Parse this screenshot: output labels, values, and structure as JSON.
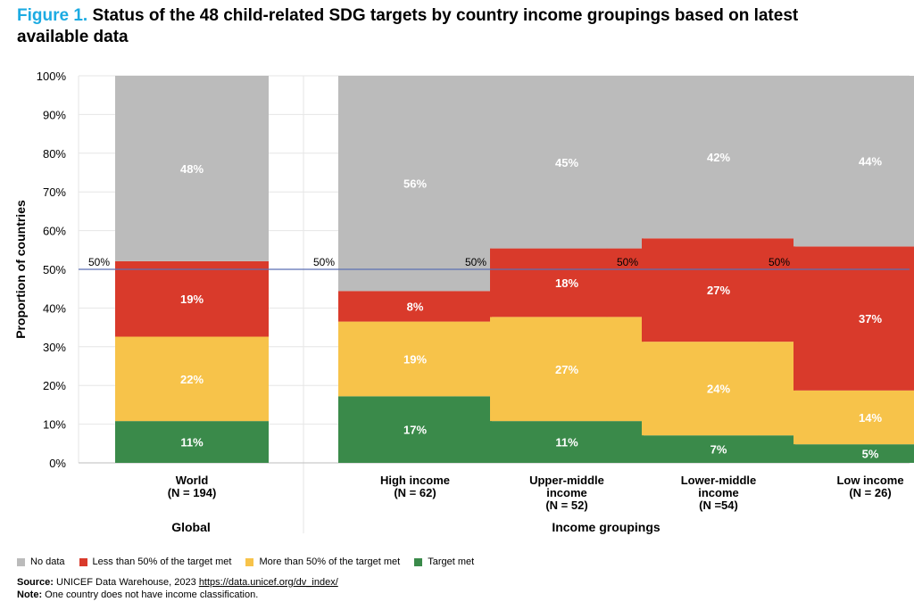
{
  "figure": {
    "label": "Figure 1.",
    "title": "Status of the 48 child-related SDG targets by country income groupings based on latest available data"
  },
  "colors": {
    "no_data": "#BBBBBB",
    "less_than_50": "#D93A2B",
    "more_than_50": "#F7C34A",
    "target_met": "#3A8A4A",
    "reference_line": "#5B6FB4",
    "title_accent": "#1CABE2"
  },
  "chart_data": {
    "type": "bar",
    "stacked": true,
    "ylabel": "Proportion of countries",
    "ylim": [
      0,
      100
    ],
    "yticks": [
      "0%",
      "10%",
      "20%",
      "30%",
      "40%",
      "50%",
      "60%",
      "70%",
      "80%",
      "90%",
      "100%"
    ],
    "reference_line": {
      "value": 50,
      "label": "50%"
    },
    "categories": [
      [
        "World",
        "(N = 194)"
      ],
      [
        "High income",
        "(N = 62)"
      ],
      [
        "Upper-middle",
        "income",
        "(N = 52)"
      ],
      [
        "Lower-middle",
        "income",
        "(N  =54)"
      ],
      [
        "Low income",
        "(N = 26)"
      ]
    ],
    "groups": [
      {
        "label": "Global",
        "categories": [
          0
        ]
      },
      {
        "label": "Income groupings",
        "categories": [
          1,
          2,
          3,
          4
        ]
      }
    ],
    "series": [
      {
        "name": "Target met",
        "color_key": "target_met",
        "values": [
          11,
          17,
          11,
          7,
          5
        ]
      },
      {
        "name": "More than 50% of the target met",
        "color_key": "more_than_50",
        "values": [
          22,
          19,
          27,
          24,
          14
        ]
      },
      {
        "name": "Less than 50% of the target met",
        "color_key": "less_than_50",
        "values": [
          19,
          8,
          18,
          27,
          37
        ]
      },
      {
        "name": "No data",
        "color_key": "no_data",
        "values": [
          48,
          56,
          45,
          42,
          44
        ]
      }
    ],
    "segment_bounds": [
      [
        [
          0,
          10.8
        ],
        [
          10.8,
          32.6
        ],
        [
          32.6,
          52.1
        ],
        [
          52.1,
          100
        ]
      ],
      [
        [
          0,
          17.2
        ],
        [
          17.2,
          36.5
        ],
        [
          36.5,
          44.4
        ],
        [
          44.4,
          100
        ]
      ],
      [
        [
          0,
          10.8
        ],
        [
          10.8,
          37.7
        ],
        [
          37.7,
          55.4
        ],
        [
          55.4,
          100
        ]
      ],
      [
        [
          0,
          7.1
        ],
        [
          7.1,
          31.3
        ],
        [
          31.3,
          58.0
        ],
        [
          58.0,
          100
        ]
      ],
      [
        [
          0,
          4.8
        ],
        [
          4.8,
          18.7
        ],
        [
          18.7,
          55.9
        ],
        [
          55.9,
          100
        ]
      ]
    ],
    "data_labels": [
      [
        "11%",
        "22%",
        "19%",
        "48%"
      ],
      [
        "17%",
        "19%",
        "8%",
        "56%"
      ],
      [
        "11%",
        "27%",
        "18%",
        "45%"
      ],
      [
        "7%",
        "24%",
        "27%",
        "42%"
      ],
      [
        "5%",
        "14%",
        "37%",
        "44%"
      ]
    ],
    "legend_order": [
      "No data",
      "Less than 50% of the target met",
      "More than 50% of the target met",
      "Target met"
    ]
  },
  "legend": {
    "items": [
      {
        "label": "No data",
        "color_key": "no_data"
      },
      {
        "label": "Less than 50% of the target met",
        "color_key": "less_than_50"
      },
      {
        "label": "More than 50% of the target met",
        "color_key": "more_than_50"
      },
      {
        "label": "Target met",
        "color_key": "target_met"
      }
    ]
  },
  "source": {
    "label": "Source:",
    "text": "UNICEF Data Warehouse, 2023",
    "link": "https://data.unicef.org/dv_index/"
  },
  "note": {
    "label": "Note:",
    "text": "One country does not have income classification."
  }
}
